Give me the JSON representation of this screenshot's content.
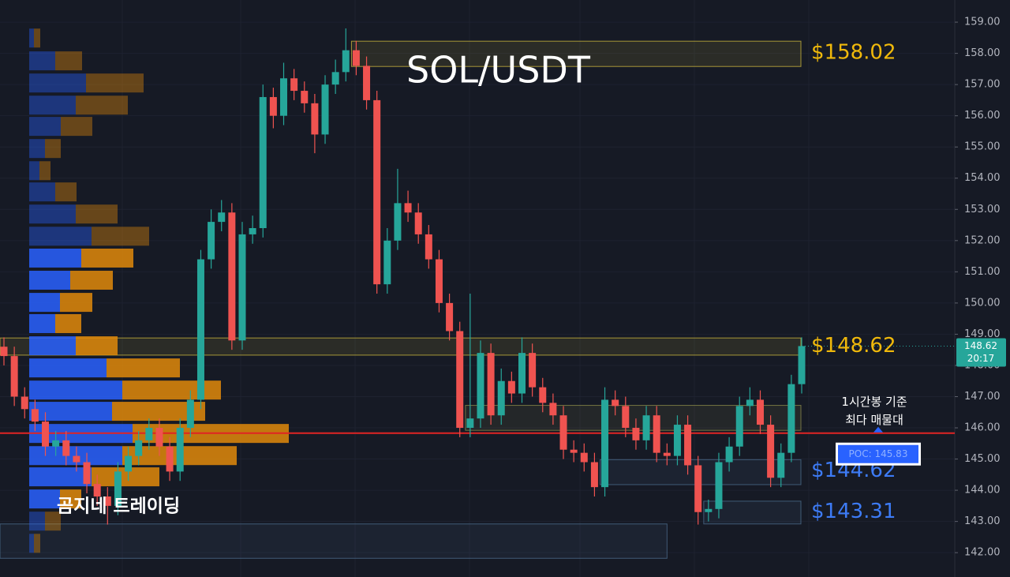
{
  "chart_data": {
    "type": "candlestick",
    "title": "SOL/USDT",
    "watermark": "곰지네 트레이딩",
    "ylim": [
      141.22,
      159.71
    ],
    "yticks": [
      {
        "value": 142,
        "label": "142.00"
      },
      {
        "value": 143,
        "label": "143.00"
      },
      {
        "value": 144,
        "label": "144.00"
      },
      {
        "value": 145,
        "label": "145.00"
      },
      {
        "value": 146,
        "label": "146.00"
      },
      {
        "value": 147,
        "label": "147.00"
      },
      {
        "value": 148,
        "label": "148.00"
      },
      {
        "value": 149,
        "label": "149.00"
      },
      {
        "value": 150,
        "label": "150.00"
      },
      {
        "value": 151,
        "label": "151.00"
      },
      {
        "value": 152,
        "label": "152.00"
      },
      {
        "value": 153,
        "label": "153.00"
      },
      {
        "value": 154,
        "label": "154.00"
      },
      {
        "value": 155,
        "label": "155.00"
      },
      {
        "value": 156,
        "label": "156.00"
      },
      {
        "value": 157,
        "label": "157.00"
      },
      {
        "value": 158,
        "label": "158.00"
      },
      {
        "value": 159,
        "label": "159.00"
      }
    ],
    "up_color": "#26a69a",
    "down_color": "#ef5350",
    "open": [
      148.6,
      148.3,
      147.0,
      146.6,
      146.2,
      145.4,
      145.6,
      145.1,
      144.9,
      144.2,
      143.8,
      143.5,
      144.6,
      145.1,
      145.6,
      146.0,
      145.4,
      144.6,
      146.0,
      146.9,
      151.4,
      152.6,
      152.9,
      148.8,
      152.2,
      152.4,
      156.6,
      156.0,
      157.2,
      156.8,
      156.4,
      155.4,
      157.0,
      157.4,
      158.1,
      157.6,
      156.5,
      150.6,
      152.0,
      153.2,
      152.9,
      152.2,
      151.4,
      150.0,
      149.1,
      146.0,
      146.3,
      148.4,
      146.4,
      147.5,
      147.1,
      148.4,
      147.3,
      146.8,
      146.4,
      145.3,
      145.2,
      144.9,
      144.1,
      146.9,
      146.7,
      146.0,
      145.6,
      146.4,
      145.2,
      145.1,
      146.1,
      144.8,
      143.3,
      143.4,
      144.9,
      145.4,
      146.7,
      146.9,
      146.1,
      144.4,
      145.2,
      147.4
    ],
    "high": [
      148.9,
      148.6,
      147.3,
      146.9,
      146.5,
      145.9,
      145.9,
      145.4,
      145.2,
      144.5,
      144.1,
      144.9,
      145.4,
      145.9,
      146.3,
      146.3,
      145.7,
      146.3,
      147.2,
      151.7,
      153.0,
      153.3,
      153.2,
      152.6,
      152.8,
      157.0,
      156.9,
      157.7,
      157.5,
      157.1,
      156.7,
      157.3,
      157.8,
      158.8,
      158.4,
      157.9,
      156.8,
      152.4,
      154.3,
      153.6,
      153.2,
      152.5,
      151.7,
      150.3,
      149.4,
      150.3,
      148.8,
      148.7,
      147.9,
      147.8,
      148.9,
      148.7,
      147.6,
      147.1,
      146.7,
      145.6,
      145.5,
      145.2,
      147.3,
      147.2,
      147.0,
      146.3,
      146.7,
      146.7,
      145.5,
      146.4,
      146.4,
      145.1,
      143.7,
      145.2,
      145.7,
      147.0,
      147.3,
      147.2,
      146.4,
      145.5,
      147.7,
      148.9
    ],
    "low": [
      148.0,
      146.7,
      146.3,
      145.9,
      145.1,
      145.1,
      144.8,
      144.6,
      143.9,
      143.5,
      142.9,
      143.2,
      144.3,
      144.8,
      145.3,
      145.1,
      144.3,
      144.3,
      145.7,
      146.6,
      151.1,
      152.3,
      148.5,
      148.5,
      151.9,
      152.1,
      155.6,
      155.7,
      156.5,
      156.1,
      154.8,
      155.1,
      156.7,
      157.1,
      157.3,
      156.2,
      150.3,
      150.3,
      151.7,
      152.6,
      151.9,
      151.1,
      149.7,
      148.8,
      145.7,
      145.7,
      146.0,
      146.1,
      146.1,
      146.8,
      146.8,
      147.0,
      146.5,
      146.1,
      145.0,
      144.9,
      144.6,
      143.8,
      143.8,
      146.4,
      145.7,
      145.3,
      145.3,
      144.9,
      144.8,
      144.8,
      144.5,
      142.9,
      143.0,
      143.1,
      144.6,
      145.1,
      146.4,
      145.8,
      144.1,
      144.1,
      144.9,
      147.1
    ],
    "close": [
      148.3,
      147.0,
      146.6,
      146.2,
      145.4,
      145.6,
      145.1,
      144.9,
      144.2,
      143.8,
      143.5,
      144.6,
      145.1,
      145.6,
      146.0,
      145.4,
      144.6,
      146.0,
      146.9,
      151.4,
      152.6,
      152.9,
      148.8,
      152.2,
      152.4,
      156.6,
      156.0,
      157.2,
      156.8,
      156.4,
      155.4,
      157.0,
      157.4,
      158.1,
      157.6,
      156.5,
      150.6,
      152.0,
      153.2,
      152.9,
      152.2,
      151.4,
      150.0,
      149.1,
      146.0,
      146.3,
      148.4,
      146.4,
      147.5,
      147.1,
      148.4,
      147.3,
      146.8,
      146.4,
      145.3,
      145.2,
      144.9,
      144.1,
      146.9,
      146.7,
      146.0,
      145.6,
      146.4,
      145.2,
      145.1,
      146.1,
      144.8,
      143.3,
      143.4,
      144.9,
      145.4,
      146.7,
      146.9,
      146.1,
      144.4,
      145.2,
      147.4,
      148.62
    ],
    "volume_profile": {
      "levels": [
        158.49,
        157.76,
        157.05,
        156.34,
        155.66,
        154.95,
        154.24,
        153.56,
        152.85,
        152.14,
        151.44,
        150.73,
        150.02,
        149.34,
        148.63,
        147.92,
        147.21,
        146.53,
        145.82,
        145.11,
        144.43,
        143.72,
        143.01,
        142.3
      ],
      "series": [
        {
          "name": "buy",
          "color": "#2962ff",
          "values": [
            6,
            33,
            72,
            59,
            40,
            20,
            13,
            33,
            59,
            79,
            66,
            52,
            39,
            33,
            59,
            98,
            118,
            105,
            131,
            118,
            79,
            39,
            20,
            6
          ]
        },
        {
          "name": "sell",
          "color": "#e08a0b",
          "values": [
            8,
            34,
            73,
            66,
            40,
            20,
            14,
            27,
            53,
            73,
            66,
            54,
            41,
            33,
            53,
            93,
            125,
            118,
            198,
            145,
            86,
            27,
            20,
            8
          ]
        }
      ],
      "value_area": {
        "low": 143.72,
        "high": 151.44
      }
    },
    "zones": [
      {
        "top": 158.39,
        "bottom": 157.58,
        "from": 34,
        "color": "#c8b43c"
      },
      {
        "top": 148.88,
        "bottom": 148.33,
        "from": 0,
        "color": "#c8b43c"
      },
      {
        "top": 146.72,
        "bottom": 145.92,
        "from": 45,
        "color": "#8a8a4a"
      },
      {
        "top": 144.98,
        "bottom": 144.18,
        "from": 58,
        "color": "#4a6a8a"
      },
      {
        "top": 143.65,
        "bottom": 142.92,
        "from": 68,
        "color": "#4a6a8a"
      },
      {
        "top": 142.92,
        "bottom": 141.82,
        "from": 0,
        "to": 64,
        "color": "#4a6a8a"
      }
    ],
    "annotations": [
      {
        "value": 158.02,
        "label": "$158.02",
        "color": "#f0b90b"
      },
      {
        "value": 148.62,
        "label": "$148.62",
        "color": "#f0b90b"
      },
      {
        "value": 144.62,
        "label": "$144.62",
        "color": "#3d7bf5"
      },
      {
        "value": 143.31,
        "label": "$143.31",
        "color": "#3d7bf5"
      }
    ],
    "poc": {
      "value": 145.83,
      "label": "POC: 145.83",
      "color": "#e02424"
    },
    "poc_note": [
      "1시간봉 기준",
      "최다 매물대"
    ],
    "current_price": {
      "value": 148.62,
      "label": "148.62"
    },
    "countdown": "20:17"
  }
}
